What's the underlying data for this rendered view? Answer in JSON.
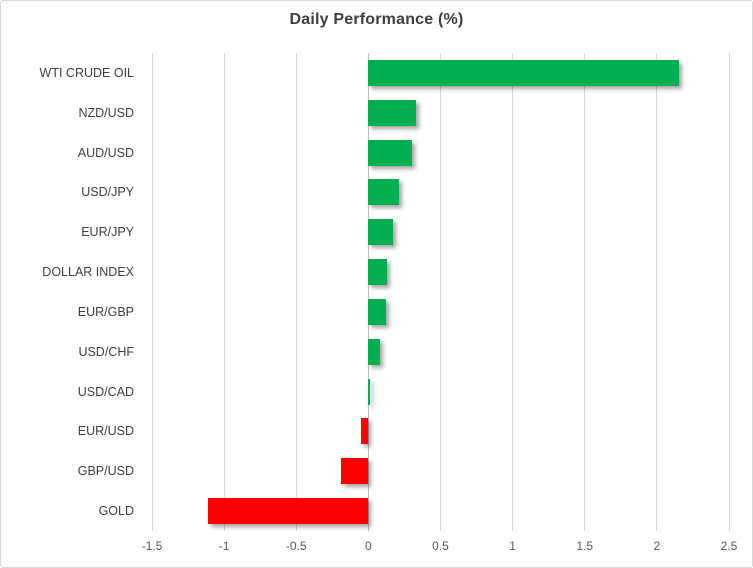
{
  "chart_data": {
    "type": "bar",
    "orientation": "horizontal",
    "title": "Daily Performance (%)",
    "categories": [
      "WTI CRUDE OIL",
      "NZD/USD",
      "AUD/USD",
      "USD/JPY",
      "EUR/JPY",
      "DOLLAR INDEX",
      "EUR/GBP",
      "USD/CHF",
      "USD/CAD",
      "EUR/USD",
      "GBP/USD",
      "GOLD"
    ],
    "values": [
      2.15,
      0.33,
      0.3,
      0.21,
      0.17,
      0.13,
      0.12,
      0.08,
      0.01,
      -0.05,
      -0.19,
      -1.11
    ],
    "xlabel": "",
    "ylabel": "",
    "xlim": [
      -1.5,
      2.5
    ],
    "x_ticks": [
      -1.5,
      -1,
      -0.5,
      0,
      0.5,
      1,
      1.5,
      2,
      2.5
    ],
    "x_tick_labels": [
      "-1.5",
      "-1",
      "-0.5",
      "0",
      "0.5",
      "1",
      "1.5",
      "2",
      "2.5"
    ],
    "grid": true,
    "legend": false,
    "colors": {
      "positive": "#00B050",
      "negative": "#FF0000",
      "gridline": "#D9D9D9",
      "zero_axis": "#BFBFBF",
      "title_text": "#3F3F3F",
      "category_text": "#404040",
      "tick_text": "#595959",
      "border": "#D9D9D9",
      "background": "#FFFFFF"
    }
  }
}
